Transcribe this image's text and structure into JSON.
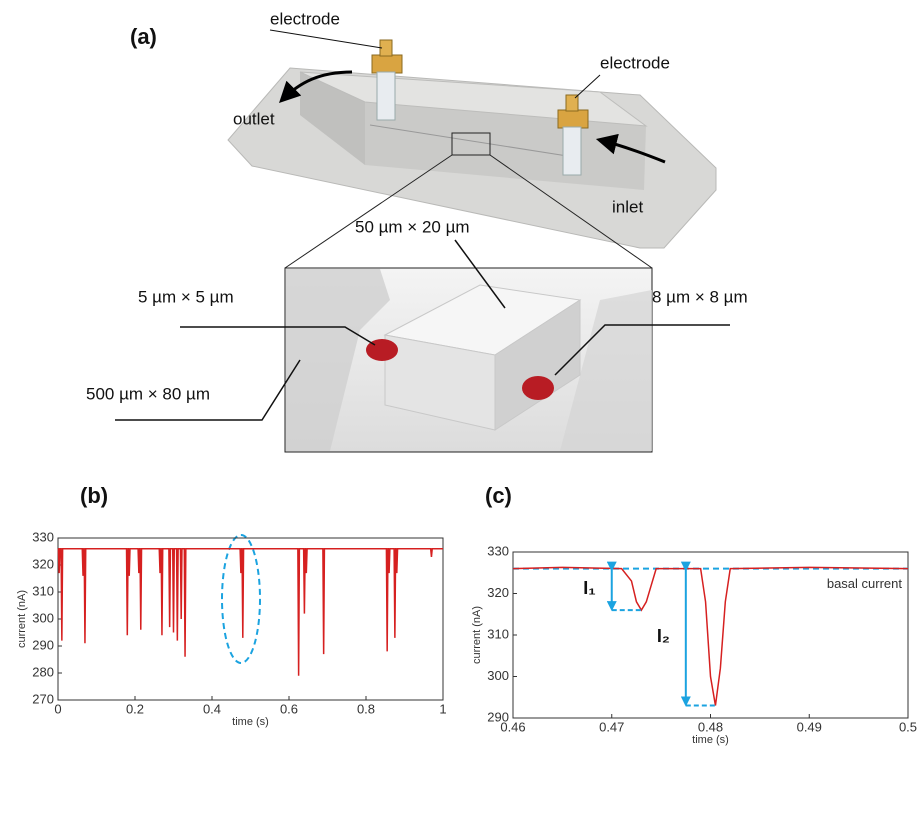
{
  "figure_a": {
    "panel_label": "(a)",
    "electrode_left": "electrode",
    "electrode_right": "electrode",
    "outlet": "outlet",
    "inlet": "inlet",
    "dim_center": "50 µm × 20 µm",
    "dim_left_channel": "5 µm × 5 µm",
    "dim_right_channel": "8 µm × 8 µm",
    "dim_main": "500 µm × 80 µm"
  },
  "chart_data": [
    {
      "type": "line",
      "panel_label": "(b)",
      "x_label": "time (s)",
      "y_label": "current (nA)",
      "xlim": [
        0,
        1
      ],
      "xticks": [
        0,
        0.2,
        0.4,
        0.6,
        0.8,
        1
      ],
      "ylim": [
        270,
        330
      ],
      "yticks": [
        270,
        280,
        290,
        300,
        310,
        320,
        330
      ],
      "series": [
        {
          "color": "#d62020",
          "x": [
            0,
            0.001,
            0.003,
            0.005,
            0.008,
            0.01,
            0.012,
            0.063,
            0.065,
            0.067,
            0.068,
            0.07,
            0.072,
            0.178,
            0.18,
            0.182,
            0.183,
            0.185,
            0.187,
            0.208,
            0.21,
            0.212,
            0.213,
            0.215,
            0.217,
            0.263,
            0.265,
            0.267,
            0.268,
            0.27,
            0.272,
            0.288,
            0.29,
            0.292,
            0.298,
            0.3,
            0.302,
            0.308,
            0.31,
            0.312,
            0.318,
            0.32,
            0.322,
            0.328,
            0.33,
            0.332,
            0.473,
            0.475,
            0.477,
            0.478,
            0.48,
            0.482,
            0.623,
            0.625,
            0.627,
            0.638,
            0.64,
            0.642,
            0.643,
            0.645,
            0.647,
            0.688,
            0.69,
            0.692,
            0.853,
            0.855,
            0.857,
            0.858,
            0.86,
            0.862,
            0.873,
            0.875,
            0.877,
            0.878,
            0.88,
            0.882,
            0.968,
            0.97,
            0.972,
            1
          ],
          "values": [
            326,
            326,
            317,
            326,
            326,
            292,
            326,
            326,
            316,
            326,
            326,
            291,
            326,
            326,
            294,
            326,
            326,
            316,
            326,
            326,
            317,
            326,
            326,
            296,
            326,
            326,
            317,
            326,
            326,
            294,
            326,
            326,
            297,
            326,
            326,
            295,
            326,
            326,
            292,
            326,
            326,
            300,
            326,
            326,
            286,
            326,
            326,
            317,
            326,
            326,
            293,
            326,
            326,
            279,
            326,
            326,
            302,
            326,
            326,
            317,
            326,
            326,
            287,
            326,
            326,
            288,
            326,
            326,
            317,
            326,
            326,
            293,
            326,
            326,
            317,
            326,
            326,
            323,
            326,
            326
          ]
        }
      ]
    },
    {
      "type": "line",
      "panel_label": "(c)",
      "x_label": "time (s)",
      "y_label": "current (nA)",
      "xlim": [
        0.46,
        0.5
      ],
      "xticks": [
        0.46,
        0.47,
        0.48,
        0.49,
        0.5
      ],
      "ylim": [
        290,
        330
      ],
      "yticks": [
        290,
        300,
        310,
        320,
        330
      ],
      "series": [
        {
          "color": "#d62020",
          "x": [
            0.46,
            0.465,
            0.471,
            0.472,
            0.4725,
            0.473,
            0.4735,
            0.474,
            0.4745,
            0.479,
            0.4795,
            0.48,
            0.4805,
            0.481,
            0.4815,
            0.482,
            0.49,
            0.5
          ],
          "values": [
            326,
            326.3,
            326,
            323,
            318,
            316,
            318,
            322,
            326,
            326,
            318,
            300,
            293,
            302,
            318,
            326,
            326.3,
            326
          ]
        }
      ],
      "basal_current": {
        "label": "basal current",
        "value": 326,
        "color": "#1ba3e0"
      },
      "annotations": [
        {
          "label": "I₁",
          "x": 0.47,
          "x_end": 0.473,
          "from": 326,
          "to": 316
        },
        {
          "label": "I₂",
          "x": 0.4775,
          "x_end": 0.4805,
          "from": 326,
          "to": 293
        }
      ]
    }
  ]
}
